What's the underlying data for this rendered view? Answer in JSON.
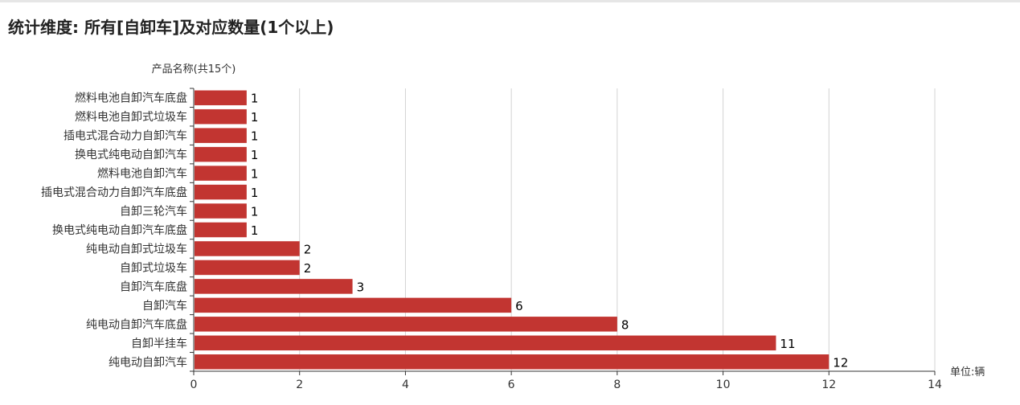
{
  "title": "统计维度: 所有[自卸车]及对应数量(1个以上)",
  "colors": {
    "bar": "#c23531",
    "grid": "#d3d3d3",
    "axis": "#333333",
    "text": "#333333"
  },
  "chart_data": {
    "type": "bar",
    "orientation": "horizontal",
    "ylabel": "产品名称(共15个)",
    "xlabel": "单位:辆",
    "xlim": [
      0,
      14
    ],
    "xticks": [
      0,
      2,
      4,
      6,
      8,
      10,
      12,
      14
    ],
    "grid": true,
    "data_labels": true,
    "categories": [
      "燃料电池自卸汽车底盘",
      "燃料电池自卸式垃圾车",
      "插电式混合动力自卸汽车",
      "换电式纯电动自卸汽车",
      "燃料电池自卸汽车",
      "插电式混合动力自卸汽车底盘",
      "自卸三轮汽车",
      "换电式纯电动自卸汽车底盘",
      "纯电动自卸式垃圾车",
      "自卸式垃圾车",
      "自卸汽车底盘",
      "自卸汽车",
      "纯电动自卸汽车底盘",
      "自卸半挂车",
      "纯电动自卸汽车"
    ],
    "values": [
      1,
      1,
      1,
      1,
      1,
      1,
      1,
      1,
      2,
      2,
      3,
      6,
      8,
      11,
      12
    ]
  }
}
